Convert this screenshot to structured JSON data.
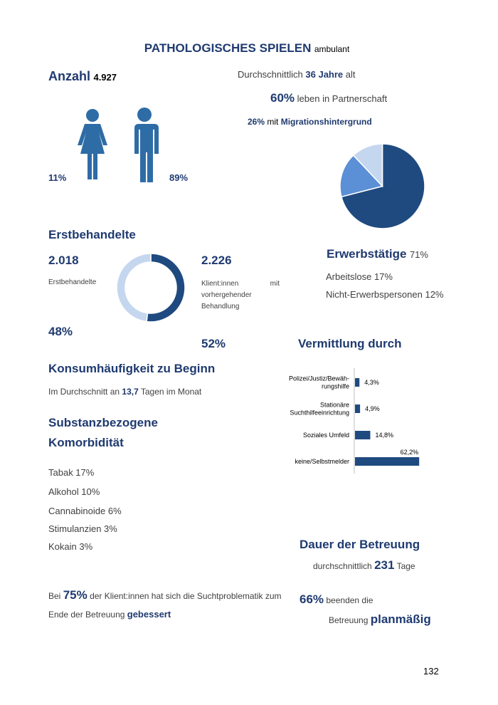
{
  "title": {
    "main": "PATHOLOGISCHES SPIELEN",
    "sub": "ambulant"
  },
  "count": {
    "label": "Anzahl",
    "value": "4.927"
  },
  "gender": {
    "female": "11%",
    "male": "89%"
  },
  "age": {
    "prefix": "Durchschnittlich",
    "value": "36 Jahre",
    "suffix": "alt"
  },
  "partnership": {
    "value": "60%",
    "text": "leben in Partnerschaft"
  },
  "migration": {
    "value": "26%",
    "mid": "mit",
    "text": "Migrationshintergrund"
  },
  "employment": {
    "type": "pie",
    "categories": [
      "Erwerbstätige",
      "Arbeitslose",
      "Nicht-Erwerbspersonen"
    ],
    "values": [
      71,
      17,
      12
    ],
    "value_labels": [
      "71%",
      "17%",
      "12%"
    ],
    "colors": [
      "#1f4a80",
      "#5b8fd6",
      "#c5d7ef"
    ]
  },
  "treatment": {
    "heading": "Erstbehandelte",
    "type": "donut",
    "categories": [
      "Erstbehandelte",
      "Klient:innen mit vorhergehender Behandlung"
    ],
    "counts": [
      "2.018",
      "2.226"
    ],
    "values": [
      48,
      52
    ],
    "value_labels": [
      "48%",
      "52%"
    ],
    "colors": [
      "#c5d7ef",
      "#1f4a80"
    ]
  },
  "referral": {
    "heading": "Vermittlung durch",
    "type": "bar",
    "categories": [
      [
        "Polizei/Justiz/Bewäh-",
        "rungshilfe"
      ],
      [
        "Stationäre",
        "Suchthilfeeinrichtung"
      ],
      [
        "Soziales Umfeld"
      ],
      [
        "keine/Selbstmelder"
      ]
    ],
    "values": [
      4.3,
      4.9,
      14.8,
      62.2
    ],
    "value_labels": [
      "4,3%",
      "4,9%",
      "14,8%",
      "62,2%"
    ],
    "color": "#1f4a80"
  },
  "consumption": {
    "heading": "Konsumhäufigkeit zu Beginn",
    "prefix": "Im Durchschnitt an",
    "value": "13,7",
    "suffix": "Tagen im Monat"
  },
  "comorbidity": {
    "heading": [
      "Substanzbezogene",
      "Komorbidität"
    ],
    "items": [
      "Tabak 17%",
      "Alkohol 10%",
      "Cannabinoide 6%",
      "Stimulanzien 3%",
      "Kokain 3%"
    ]
  },
  "duration": {
    "heading": "Dauer der Betreuung",
    "prefix": "durchschnittlich",
    "value": "231",
    "suffix": "Tage"
  },
  "improvement": {
    "prefix": "Bei",
    "value": "75%",
    "text": "der Klient:innen hat sich die Suchtproblematik zum",
    "line2": "Ende der Betreuung",
    "emph": "gebessert"
  },
  "planned": {
    "value": "66%",
    "text": "beenden die",
    "line2": "Betreuung",
    "emph": "planmäßig"
  },
  "page_number": "132"
}
